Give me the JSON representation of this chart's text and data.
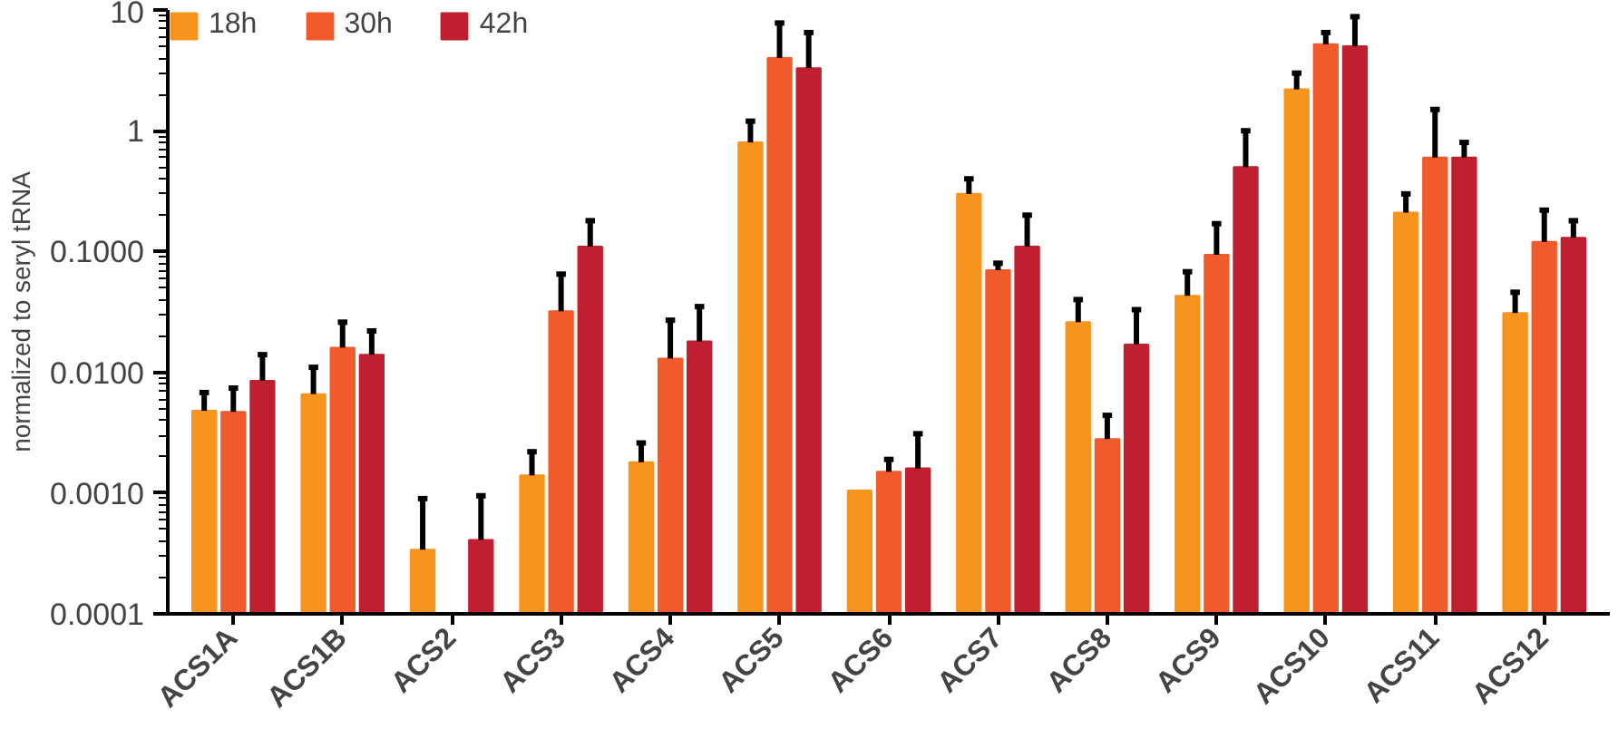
{
  "chart_data": {
    "type": "bar",
    "ylabel": "normalized to seryl tRNA",
    "categories": [
      "ACS1A",
      "ACS1B",
      "ACS2",
      "ACS3",
      "ACS4",
      "ACS5",
      "ACS6",
      "ACS7",
      "ACS8",
      "ACS9",
      "ACS10",
      "ACS11",
      "ACS12"
    ],
    "series": [
      {
        "name": "18h",
        "color": "#f7941d",
        "values": [
          0.0048,
          0.0066,
          0.00034,
          0.0014,
          0.0018,
          0.8,
          0.00105,
          0.3,
          0.026,
          0.043,
          2.2,
          0.21,
          0.031
        ],
        "errors": [
          [
            0.0048,
            0.0068
          ],
          [
            0.0066,
            0.011
          ],
          [
            0.00034,
            0.0009
          ],
          [
            0.0014,
            0.0022
          ],
          [
            0.0018,
            0.0026
          ],
          [
            0.8,
            1.2
          ],
          null,
          [
            0.3,
            0.4
          ],
          [
            0.026,
            0.04
          ],
          [
            0.043,
            0.068
          ],
          [
            2.2,
            3.0
          ],
          [
            0.21,
            0.3
          ],
          [
            0.031,
            0.046
          ]
        ]
      },
      {
        "name": "30h",
        "color": "#f15a2b",
        "values": [
          0.0047,
          0.016,
          null,
          0.032,
          0.013,
          4.0,
          0.0015,
          0.07,
          0.0028,
          0.094,
          5.2,
          0.6,
          0.12
        ],
        "errors": [
          [
            0.0047,
            0.0074
          ],
          [
            0.016,
            0.026
          ],
          null,
          [
            0.032,
            0.065
          ],
          [
            0.013,
            0.027
          ],
          [
            4.0,
            7.8
          ],
          [
            0.0015,
            0.0019
          ],
          [
            0.07,
            0.08
          ],
          [
            0.0028,
            0.0044
          ],
          [
            0.094,
            0.17
          ],
          [
            5.2,
            6.5
          ],
          [
            0.6,
            1.5
          ],
          [
            0.12,
            0.22
          ]
        ]
      },
      {
        "name": "42h",
        "color": "#c01f2f",
        "values": [
          0.0085,
          0.014,
          0.00041,
          0.11,
          0.018,
          3.3,
          0.0016,
          0.11,
          0.017,
          0.5,
          5.0,
          0.6,
          0.13
        ],
        "errors": [
          [
            0.0085,
            0.014
          ],
          [
            0.014,
            0.022
          ],
          [
            0.00041,
            0.00095
          ],
          [
            0.11,
            0.18
          ],
          [
            0.018,
            0.035
          ],
          [
            3.3,
            6.5
          ],
          [
            0.0016,
            0.0031
          ],
          [
            0.11,
            0.2
          ],
          [
            0.017,
            0.033
          ],
          [
            0.5,
            1.0
          ],
          [
            5.0,
            8.8
          ],
          [
            0.6,
            0.8
          ],
          [
            0.13,
            0.18
          ]
        ]
      }
    ],
    "log": true,
    "ylim": [
      0.0001,
      10
    ],
    "yticks": [
      {
        "value": 0.0001,
        "label": "0.0001"
      },
      {
        "value": 0.001,
        "label": "0.0010"
      },
      {
        "value": 0.01,
        "label": "0.0100"
      },
      {
        "value": 0.1,
        "label": "0.1000"
      },
      1,
      10
    ],
    "grid": false,
    "legend": "top left"
  }
}
